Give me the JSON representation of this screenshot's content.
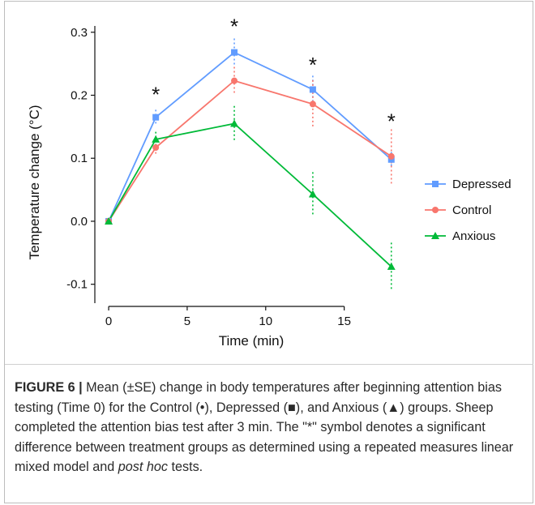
{
  "chart_data": {
    "type": "line",
    "xlabel": "Time (min)",
    "ylabel": "Temperature change (°C)",
    "xlim": [
      -1.5,
      19.2
    ],
    "ylim": [
      -0.13,
      0.31
    ],
    "x_ticks": [
      0,
      5,
      10,
      15
    ],
    "x_tick_labels": [
      "0",
      "5",
      "10",
      "15"
    ],
    "y_ticks": [
      -0.1,
      0.0,
      0.1,
      0.2,
      0.3
    ],
    "y_tick_labels": [
      "-0.1",
      "0.0",
      "0.1",
      "0.2",
      "0.3"
    ],
    "grid": false,
    "legend_position": "right",
    "x": [
      0,
      3,
      8,
      13,
      18
    ],
    "series": [
      {
        "name": "Depressed",
        "marker": "square",
        "color": "#619CFF",
        "values": [
          0.0,
          0.165,
          0.268,
          0.209,
          0.098
        ],
        "se": [
          0.0,
          0.012,
          0.022,
          0.022,
          0.012
        ]
      },
      {
        "name": "Control",
        "marker": "circle",
        "color": "#F8766D",
        "values": [
          0.0,
          0.117,
          0.223,
          0.186,
          0.103
        ],
        "se": [
          0.0,
          0.012,
          0.022,
          0.038,
          0.043
        ]
      },
      {
        "name": "Anxious",
        "marker": "triangle",
        "color": "#00BA38",
        "values": [
          0.0,
          0.13,
          0.155,
          0.043,
          -0.072
        ],
        "se": [
          0.0,
          0.012,
          0.028,
          0.035,
          0.038
        ]
      }
    ],
    "annotations": [
      {
        "x": 3,
        "y": 0.205,
        "text": "*"
      },
      {
        "x": 8,
        "y": 0.313,
        "text": "*"
      },
      {
        "x": 13,
        "y": 0.252,
        "text": "*"
      },
      {
        "x": 18,
        "y": 0.163,
        "text": "*"
      }
    ]
  },
  "caption": {
    "label": "FIGURE 6 |",
    "part1": " Mean (±SE) change in body temperatures after beginning attention bias testing (Time 0) for the Control (•), Depressed (■), and Anxious (▲) groups. Sheep completed the attention bias test after 3 min. The \"*\" symbol denotes a significant difference between treatment groups as determined using a repeated measures linear mixed model and ",
    "italic": "post hoc",
    "part2": " tests."
  }
}
